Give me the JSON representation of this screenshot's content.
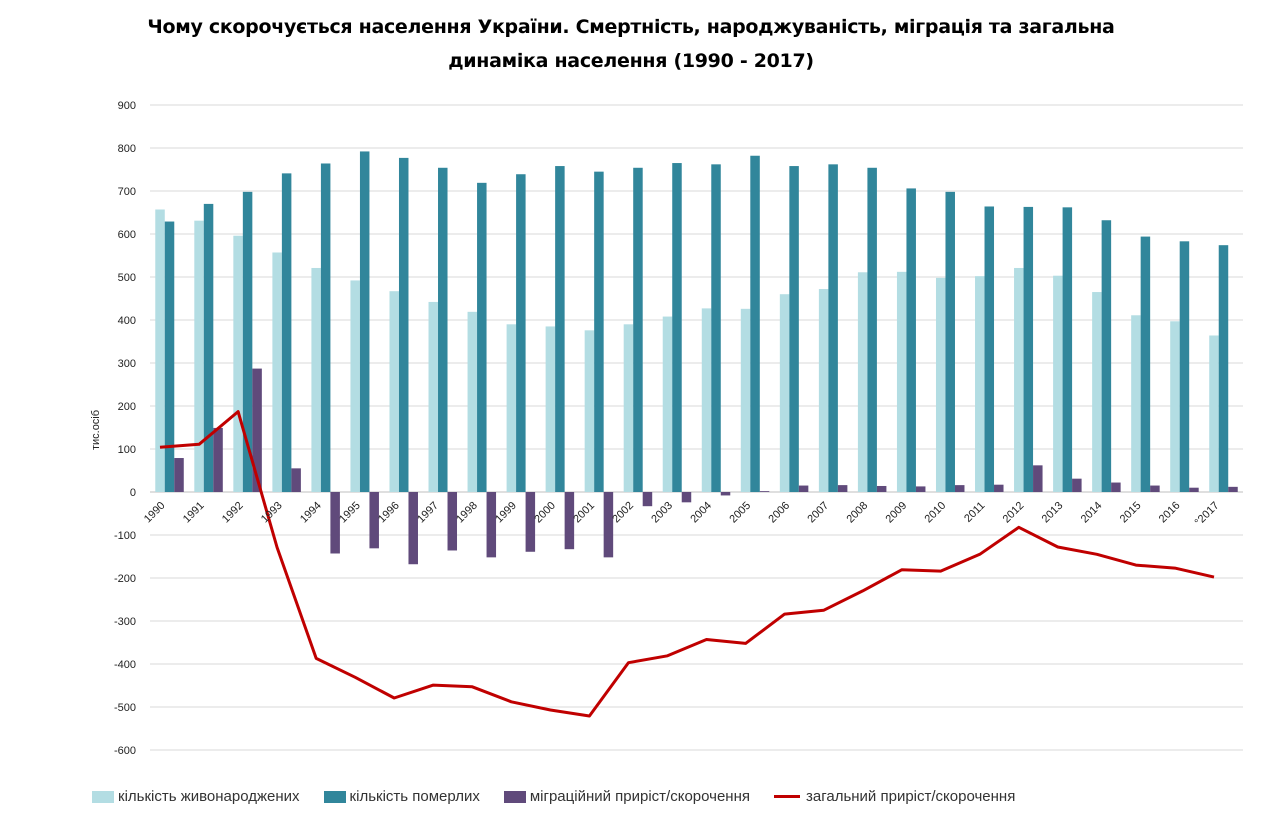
{
  "chart_data": {
    "type": "bar",
    "title_line1": "Чому скорочується населення України. Смертність, народжуваність, міграція та загальна",
    "title_line2": "динаміка населення (1990 - 2017)",
    "ylabel": "тис.осіб",
    "ylim": [
      -600,
      900
    ],
    "yticks": [
      900,
      800,
      700,
      600,
      500,
      400,
      300,
      200,
      100,
      0,
      -100,
      -200,
      -300,
      -400,
      -500,
      -600
    ],
    "grid": true,
    "legend_position": "bottom",
    "categories": [
      "1990",
      "1991",
      "1992",
      "1993",
      "1994",
      "1995",
      "1996",
      "1997",
      "1998",
      "1999",
      "2000",
      "2001",
      "2002",
      "2003",
      "2004",
      "2005",
      "2006",
      "2007",
      "2008",
      "2009",
      "2010",
      "2011",
      "2012",
      "2013",
      "2014",
      "2015",
      "2016",
      "°2017"
    ],
    "series": [
      {
        "name": "кількість живонароджених",
        "kind": "bar",
        "color": "#b3dde3",
        "values": [
          657,
          631,
          596,
          557,
          521,
          492,
          467,
          442,
          419,
          390,
          385,
          376,
          390,
          408,
          427,
          426,
          460,
          472,
          511,
          512,
          498,
          502,
          521,
          503,
          465,
          411,
          397,
          364
        ]
      },
      {
        "name": "кількість померлих",
        "kind": "bar",
        "color": "#31869b",
        "values": [
          629,
          670,
          698,
          741,
          764,
          792,
          777,
          754,
          719,
          739,
          758,
          745,
          754,
          765,
          762,
          782,
          758,
          762,
          754,
          706,
          698,
          664,
          663,
          662,
          632,
          594,
          583,
          574
        ]
      },
      {
        "name": "міграційний приріст/скорочення",
        "kind": "bar",
        "color": "#604a7b",
        "values": [
          79,
          149,
          287,
          55,
          -143,
          -131,
          -168,
          -136,
          -152,
          -139,
          -133,
          -152,
          -33,
          -24,
          -8,
          2,
          15,
          16,
          14,
          13,
          16,
          17,
          62,
          31,
          22,
          15,
          10,
          12
        ]
      },
      {
        "name": "загальний приріст/скорочення",
        "kind": "line",
        "color": "#c00000",
        "values": [
          104,
          111,
          187,
          -129,
          -387,
          -431,
          -479,
          -449,
          -453,
          -488,
          -507,
          -521,
          -397,
          -381,
          -343,
          -352,
          -284,
          -275,
          -230,
          -181,
          -184,
          -145,
          -82,
          -128,
          -145,
          -170,
          -177,
          -198
        ]
      }
    ]
  }
}
